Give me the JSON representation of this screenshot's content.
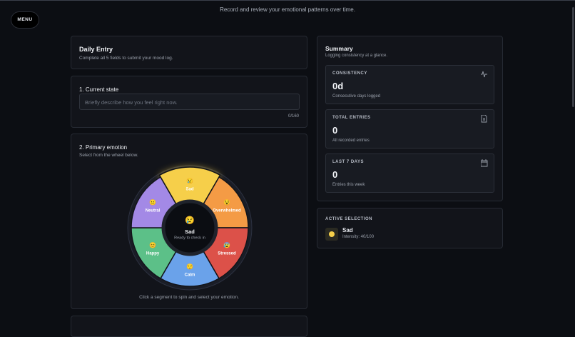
{
  "header": {
    "subtitle": "Record and review your emotional patterns over time.",
    "menu": "MENU"
  },
  "daily_entry": {
    "title": "Daily Entry",
    "subtitle": "Complete all 5 fields to submit your mood log."
  },
  "current_state": {
    "label": "1. Current state",
    "placeholder": "Briefly describe how you feel right now.",
    "counter": "0/160"
  },
  "primary_emotion": {
    "label": "2. Primary emotion",
    "hint": "Select from the wheel below.",
    "segments": [
      {
        "emoji": "😢",
        "name": "Sad",
        "color": "#f6cf4a"
      },
      {
        "emoji": "😵",
        "name": "Overwhelmed",
        "color": "#f49b45"
      },
      {
        "emoji": "😰",
        "name": "Stressed",
        "color": "#dc5149"
      },
      {
        "emoji": "😌",
        "name": "Calm",
        "color": "#6aa2ea"
      },
      {
        "emoji": "😊",
        "name": "Happy",
        "color": "#5cc088"
      },
      {
        "emoji": "😐",
        "name": "Neutral",
        "color": "#a389e6"
      }
    ],
    "center": {
      "emoji": "😢",
      "name": "Sad",
      "status": "Ready to check in"
    },
    "footer": "Click a segment to spin and select your emotion."
  },
  "summary": {
    "title": "Summary",
    "subtitle": "Logging consistency at a glance.",
    "stats": [
      {
        "label": "CONSISTENCY",
        "value": "0d",
        "caption": "Consecutive days logged"
      },
      {
        "label": "TOTAL ENTRIES",
        "value": "0",
        "caption": "All recorded entries"
      },
      {
        "label": "LAST 7 DAYS",
        "value": "0",
        "caption": "Entries this week"
      }
    ]
  },
  "active_selection": {
    "label": "ACTIVE SELECTION",
    "name": "Sad",
    "intensity": "Intensity: 40/100"
  }
}
